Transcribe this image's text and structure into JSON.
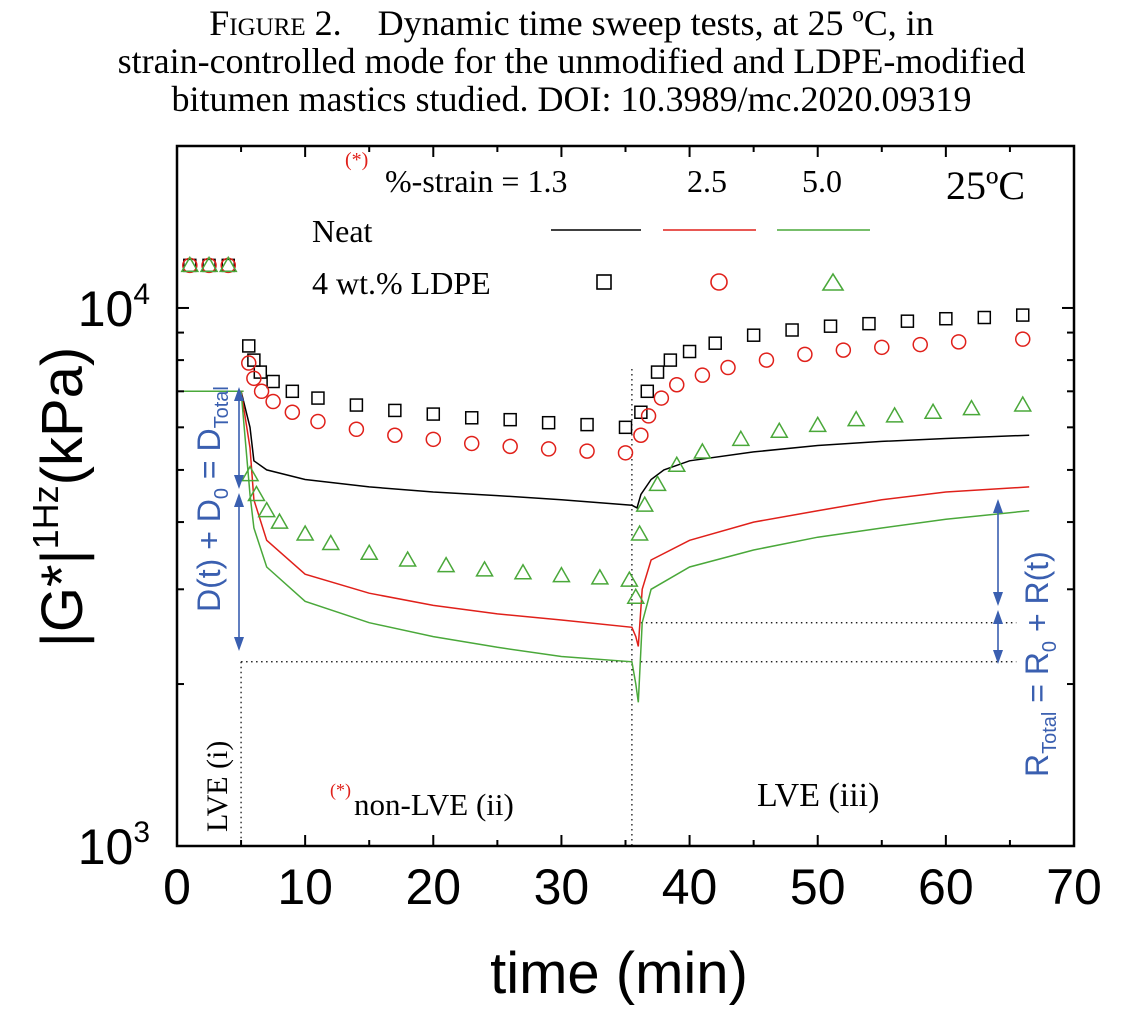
{
  "caption": {
    "figure_label": "Figure 2.",
    "line1": "Dynamic time sweep tests, at 25 ºC, in",
    "line2": "strain-controlled mode for the unmodified and LDPE-modified",
    "line3": "bitumen mastics studied. DOI: 10.3989/mc.2020.09319"
  },
  "colors": {
    "neat_1_3": "#000000",
    "neat_2_5": "#e0201a",
    "neat_5_0": "#4aa83a",
    "annotation_blue": "#3a5fb0",
    "asterisk_red": "#e0201a"
  },
  "chart_data": {
    "type": "line",
    "xlabel": "time (min)",
    "ylabel_main": "|G*|",
    "ylabel_sup": "1Hz",
    "ylabel_unit": "(kPa)",
    "xlim": [
      0,
      70
    ],
    "ylim": [
      1000,
      20000
    ],
    "yscale": "log",
    "x_ticks": [
      "0",
      "10",
      "20",
      "30",
      "40",
      "50",
      "60",
      "70"
    ],
    "y_tick_labels": [
      {
        "base": "10",
        "exp": "3",
        "value": 1000
      },
      {
        "base": "10",
        "exp": "4",
        "value": 10000
      }
    ],
    "temperature_label": "25ºC",
    "legend": {
      "header_prefix": "%-strain = ",
      "header_asterisk": "(*)",
      "strains": [
        "1.3",
        "2.5",
        "5.0"
      ],
      "rows": [
        "Neat",
        "4 wt.% LDPE"
      ]
    },
    "series": [
      {
        "name": "Neat",
        "strain": "1.3",
        "style": "line",
        "color": "#000000",
        "points": [
          [
            5.0,
            7000
          ],
          [
            5.7,
            6000
          ],
          [
            6.0,
            5200
          ],
          [
            7,
            5000
          ],
          [
            10,
            4800
          ],
          [
            15,
            4650
          ],
          [
            20,
            4550
          ],
          [
            25,
            4480
          ],
          [
            30,
            4400
          ],
          [
            35.5,
            4300
          ],
          [
            35.9,
            4250
          ],
          [
            36.2,
            4500
          ],
          [
            37,
            4800
          ],
          [
            38,
            5000
          ],
          [
            40,
            5200
          ],
          [
            45,
            5400
          ],
          [
            50,
            5550
          ],
          [
            55,
            5650
          ],
          [
            60,
            5720
          ],
          [
            66.5,
            5800
          ]
        ]
      },
      {
        "name": "Neat",
        "strain": "2.5",
        "style": "line",
        "color": "#e0201a",
        "points": [
          [
            5.0,
            7000
          ],
          [
            5.7,
            5500
          ],
          [
            6.0,
            4400
          ],
          [
            7,
            3700
          ],
          [
            10,
            3200
          ],
          [
            15,
            2950
          ],
          [
            20,
            2800
          ],
          [
            25,
            2700
          ],
          [
            30,
            2630
          ],
          [
            35.5,
            2550
          ],
          [
            35.8,
            2450
          ],
          [
            36.0,
            2350
          ],
          [
            36.3,
            3000
          ],
          [
            37,
            3400
          ],
          [
            40,
            3700
          ],
          [
            45,
            4000
          ],
          [
            50,
            4200
          ],
          [
            55,
            4400
          ],
          [
            60,
            4550
          ],
          [
            66.5,
            4650
          ]
        ]
      },
      {
        "name": "Neat",
        "strain": "5.0",
        "style": "line",
        "color": "#4aa83a",
        "points": [
          [
            5.0,
            7000
          ],
          [
            5.7,
            4500
          ],
          [
            6.0,
            3900
          ],
          [
            7,
            3300
          ],
          [
            10,
            2850
          ],
          [
            15,
            2600
          ],
          [
            20,
            2450
          ],
          [
            25,
            2340
          ],
          [
            30,
            2250
          ],
          [
            35.5,
            2200
          ],
          [
            35.8,
            2000
          ],
          [
            36.0,
            1850
          ],
          [
            36.3,
            2600
          ],
          [
            37,
            3000
          ],
          [
            40,
            3300
          ],
          [
            45,
            3550
          ],
          [
            50,
            3750
          ],
          [
            55,
            3900
          ],
          [
            60,
            4050
          ],
          [
            66.5,
            4200
          ]
        ]
      },
      {
        "name": "4 wt.% LDPE",
        "strain": "1.3",
        "style": "square",
        "color": "#000000",
        "points": [
          [
            1,
            12000
          ],
          [
            2.5,
            12000
          ],
          [
            4,
            12000
          ],
          [
            5.6,
            8500
          ],
          [
            6,
            8000
          ],
          [
            6.5,
            7600
          ],
          [
            7.5,
            7300
          ],
          [
            9,
            7000
          ],
          [
            11,
            6800
          ],
          [
            14,
            6600
          ],
          [
            17,
            6450
          ],
          [
            20,
            6350
          ],
          [
            23,
            6250
          ],
          [
            26,
            6200
          ],
          [
            29,
            6120
          ],
          [
            32,
            6070
          ],
          [
            35,
            6000
          ],
          [
            36.2,
            6400
          ],
          [
            36.7,
            7000
          ],
          [
            37.5,
            7600
          ],
          [
            38.5,
            8000
          ],
          [
            40,
            8300
          ],
          [
            42,
            8600
          ],
          [
            45,
            8900
          ],
          [
            48,
            9100
          ],
          [
            51,
            9250
          ],
          [
            54,
            9350
          ],
          [
            57,
            9450
          ],
          [
            60,
            9550
          ],
          [
            63,
            9600
          ],
          [
            66,
            9700
          ]
        ]
      },
      {
        "name": "4 wt.% LDPE",
        "strain": "2.5",
        "style": "circle",
        "color": "#e0201a",
        "points": [
          [
            1,
            12000
          ],
          [
            2.5,
            12000
          ],
          [
            4,
            12000
          ],
          [
            5.6,
            7900
          ],
          [
            6,
            7400
          ],
          [
            6.6,
            7000
          ],
          [
            7.5,
            6700
          ],
          [
            9,
            6400
          ],
          [
            11,
            6150
          ],
          [
            14,
            5950
          ],
          [
            17,
            5800
          ],
          [
            20,
            5700
          ],
          [
            23,
            5600
          ],
          [
            26,
            5530
          ],
          [
            29,
            5470
          ],
          [
            32,
            5420
          ],
          [
            35,
            5380
          ],
          [
            36.2,
            5800
          ],
          [
            36.8,
            6300
          ],
          [
            37.8,
            6800
          ],
          [
            39,
            7200
          ],
          [
            41,
            7500
          ],
          [
            43,
            7750
          ],
          [
            46,
            8000
          ],
          [
            49,
            8200
          ],
          [
            52,
            8350
          ],
          [
            55,
            8450
          ],
          [
            58,
            8550
          ],
          [
            61,
            8650
          ],
          [
            66,
            8750
          ]
        ]
      },
      {
        "name": "4 wt.% LDPE",
        "strain": "5.0",
        "style": "triangle",
        "color": "#4aa83a",
        "points": [
          [
            1,
            12000
          ],
          [
            2.5,
            12000
          ],
          [
            4,
            12000
          ],
          [
            5.7,
            4900
          ],
          [
            6.2,
            4500
          ],
          [
            7,
            4200
          ],
          [
            8,
            4000
          ],
          [
            10,
            3800
          ],
          [
            12,
            3650
          ],
          [
            15,
            3500
          ],
          [
            18,
            3400
          ],
          [
            21,
            3320
          ],
          [
            24,
            3260
          ],
          [
            27,
            3220
          ],
          [
            30,
            3180
          ],
          [
            33,
            3150
          ],
          [
            35.3,
            3120
          ],
          [
            35.8,
            2900
          ],
          [
            36.1,
            3800
          ],
          [
            36.5,
            4300
          ],
          [
            37.5,
            4700
          ],
          [
            39,
            5100
          ],
          [
            41,
            5400
          ],
          [
            44,
            5700
          ],
          [
            47,
            5900
          ],
          [
            50,
            6050
          ],
          [
            53,
            6200
          ],
          [
            56,
            6300
          ],
          [
            59,
            6400
          ],
          [
            62,
            6500
          ],
          [
            66,
            6600
          ]
        ]
      }
    ],
    "region_labels": {
      "lve_i": "LVE (i)",
      "non_lve_asterisk": "(*)",
      "non_lve": "non-LVE  (ii)",
      "lve_iii": "LVE (iii)"
    },
    "annotations": {
      "left_D": "D(t)  +  D",
      "left_D_sub0": "0",
      "left_eq": "  = D",
      "left_D_subTotal": "Total",
      "right_R": "R",
      "right_R_subTotal": "Total",
      "right_eq": " = R",
      "right_R_sub0": "0",
      "right_plus": " + R(t)"
    }
  }
}
